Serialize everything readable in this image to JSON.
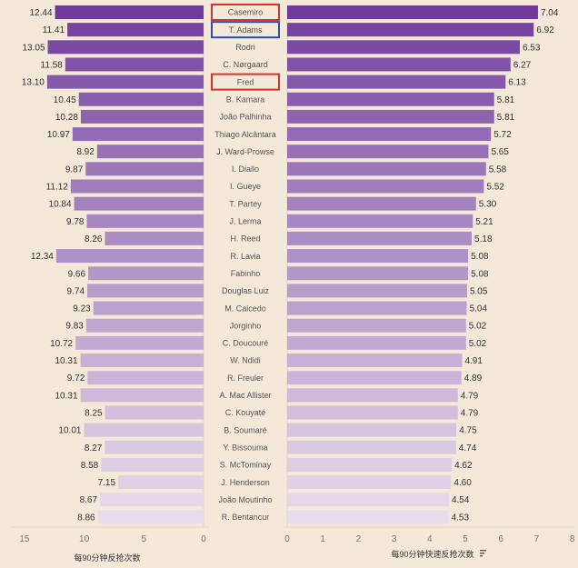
{
  "chart_data": [
    {
      "type": "bar",
      "orientation": "horizontal",
      "direction": "right-to-left",
      "xlabel": "每90分钟反抢次数",
      "xlim": [
        0,
        15
      ],
      "xticks": [
        15,
        10,
        5,
        0
      ],
      "categories": [
        "Casemiro",
        "T. Adams",
        "Rodri",
        "C. Nørgaard",
        "Fred",
        "B. Kamara",
        "João Palhinha",
        "Thiago Alcântara",
        "J. Ward-Prowse",
        "I. Diallo",
        "I. Gueye",
        "T. Partey",
        "J. Lerma",
        "H. Reed",
        "R. Lavia",
        "Fabinho",
        "Douglas Luiz",
        "M. Caicedo",
        "Jorginho",
        "C. Doucouré",
        "W. Ndidi",
        "R. Freuler",
        "A. Mac Allister",
        "C. Kouyaté",
        "B. Soumaré",
        "Y. Bissouma",
        "S. McTominay",
        "J. Henderson",
        "João Moutinho",
        "R. Bentancur"
      ],
      "values": [
        12.44,
        11.41,
        13.05,
        11.58,
        13.1,
        10.45,
        10.28,
        10.97,
        8.92,
        9.87,
        11.12,
        10.84,
        9.78,
        8.26,
        12.34,
        9.66,
        9.74,
        9.23,
        9.83,
        10.72,
        10.31,
        9.72,
        10.31,
        8.25,
        10.01,
        8.27,
        8.58,
        7.15,
        8.67,
        8.86
      ]
    },
    {
      "type": "bar",
      "orientation": "horizontal",
      "xlabel": "每90分钟快速反抢次数",
      "xlim": [
        0,
        8
      ],
      "xticks": [
        0,
        1,
        2,
        3,
        4,
        5,
        6,
        7,
        8
      ],
      "sorted": "descending",
      "categories": [
        "Casemiro",
        "T. Adams",
        "Rodri",
        "C. Nørgaard",
        "Fred",
        "B. Kamara",
        "João Palhinha",
        "Thiago Alcântara",
        "J. Ward-Prowse",
        "I. Diallo",
        "I. Gueye",
        "T. Partey",
        "J. Lerma",
        "H. Reed",
        "R. Lavia",
        "Fabinho",
        "Douglas Luiz",
        "M. Caicedo",
        "Jorginho",
        "C. Doucouré",
        "W. Ndidi",
        "R. Freuler",
        "A. Mac Allister",
        "C. Kouyaté",
        "B. Soumaré",
        "Y. Bissouma",
        "S. McTominay",
        "J. Henderson",
        "João Moutinho",
        "R. Bentancur"
      ],
      "values": [
        7.04,
        6.92,
        6.53,
        6.27,
        6.13,
        5.81,
        5.81,
        5.72,
        5.65,
        5.58,
        5.52,
        5.3,
        5.21,
        5.18,
        5.08,
        5.08,
        5.05,
        5.04,
        5.02,
        5.02,
        4.91,
        4.89,
        4.79,
        4.79,
        4.75,
        4.74,
        4.62,
        4.6,
        4.54,
        4.53
      ]
    }
  ],
  "colors": {
    "background": "#f4e9d9",
    "bar_dark": "#6f3a9c",
    "bar_light": "#e6dceb",
    "highlight_red": "#d9322b",
    "highlight_blue": "#2f4ea8"
  },
  "highlights": [
    {
      "player": "Casemiro",
      "color": "red"
    },
    {
      "player": "T. Adams",
      "color": "blue"
    },
    {
      "player": "Fred",
      "color": "red"
    }
  ],
  "sort_icon": "sort-descending-icon"
}
